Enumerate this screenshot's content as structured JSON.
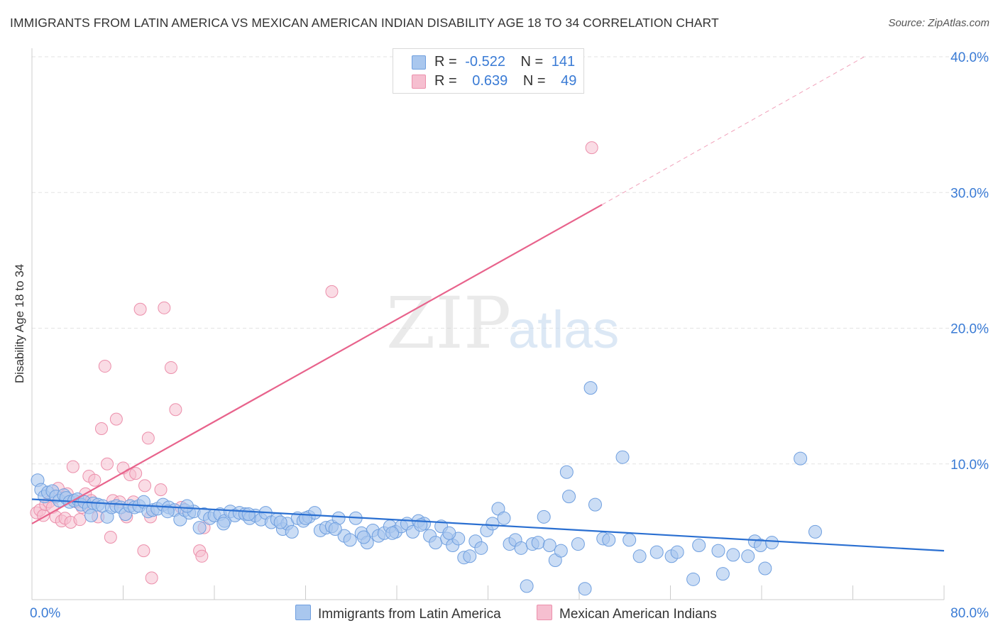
{
  "header": {
    "title": "IMMIGRANTS FROM LATIN AMERICA VS MEXICAN AMERICAN INDIAN DISABILITY AGE 18 TO 34 CORRELATION CHART",
    "source": "Source: ZipAtlas.com"
  },
  "watermark": {
    "zip": "ZIP",
    "atlas": "atlas"
  },
  "legend": {
    "rows": [
      {
        "r_label": "R =",
        "r_value": "-0.522",
        "n_label": "N =",
        "n_value": "141"
      },
      {
        "r_label": "R =",
        "r_value": "0.639",
        "n_label": "N =",
        "n_value": "49"
      }
    ]
  },
  "bottom_legend": {
    "series1": "Immigrants from Latin America",
    "series2": "Mexican American Indians"
  },
  "colors": {
    "blue_fill": "#a9c7ee",
    "blue_stroke": "#6f9fdf",
    "blue_line": "#2a6fd1",
    "pink_fill": "#f6bfd0",
    "pink_stroke": "#ec8fab",
    "pink_line": "#e8638c",
    "tick_label": "#3a7bd5",
    "grid": "#e3e3e3"
  },
  "chart_data": {
    "type": "scatter",
    "title": "IMMIGRANTS FROM LATIN AMERICA VS MEXICAN AMERICAN INDIAN DISABILITY AGE 18 TO 34 CORRELATION CHART",
    "xlabel": "",
    "ylabel": "Disability Age 18 to 34",
    "xlim": [
      0,
      80
    ],
    "ylim": [
      0,
      40
    ],
    "x_tick_labels": [
      "0.0%",
      "80.0%"
    ],
    "y_ticks": [
      10,
      20,
      30,
      40
    ],
    "y_tick_labels": [
      "10.0%",
      "20.0%",
      "30.0%",
      "40.0%"
    ],
    "grid": true,
    "legend_position": "top-center",
    "series": [
      {
        "name": "Immigrants from Latin America",
        "color": "#a9c7ee",
        "trend": {
          "x0": 0,
          "y0": 7.4,
          "x1": 80,
          "y1": 3.6
        },
        "points": [
          [
            0.5,
            8.8
          ],
          [
            0.8,
            8.1
          ],
          [
            1.1,
            7.6
          ],
          [
            1.4,
            7.9
          ],
          [
            1.8,
            8.0
          ],
          [
            2.1,
            7.6
          ],
          [
            2.4,
            7.3
          ],
          [
            2.8,
            7.7
          ],
          [
            3.0,
            7.5
          ],
          [
            3.3,
            7.2
          ],
          [
            3.7,
            7.3
          ],
          [
            4.0,
            7.4
          ],
          [
            4.3,
            7.0
          ],
          [
            4.6,
            7.2
          ],
          [
            5.0,
            6.8
          ],
          [
            5.4,
            7.1
          ],
          [
            5.8,
            7.0
          ],
          [
            6.2,
            6.9
          ],
          [
            6.6,
            6.1
          ],
          [
            7.0,
            6.8
          ],
          [
            7.4,
            6.9
          ],
          [
            7.8,
            6.8
          ],
          [
            8.2,
            6.3
          ],
          [
            8.6,
            6.9
          ],
          [
            9.0,
            6.8
          ],
          [
            9.4,
            6.9
          ],
          [
            9.8,
            7.2
          ],
          [
            10.2,
            6.5
          ],
          [
            10.6,
            6.6
          ],
          [
            11.0,
            6.7
          ],
          [
            11.5,
            7.0
          ],
          [
            12.0,
            6.8
          ],
          [
            12.5,
            6.6
          ],
          [
            13.0,
            5.9
          ],
          [
            13.4,
            6.6
          ],
          [
            13.8,
            6.4
          ],
          [
            14.2,
            6.5
          ],
          [
            14.7,
            5.3
          ],
          [
            15.1,
            6.3
          ],
          [
            15.6,
            6.0
          ],
          [
            16.0,
            6.2
          ],
          [
            16.5,
            6.3
          ],
          [
            16.9,
            5.8
          ],
          [
            17.4,
            6.5
          ],
          [
            17.8,
            6.2
          ],
          [
            18.2,
            6.4
          ],
          [
            18.7,
            6.3
          ],
          [
            19.1,
            6.0
          ],
          [
            19.6,
            6.2
          ],
          [
            20.1,
            5.9
          ],
          [
            20.5,
            6.4
          ],
          [
            21.0,
            5.7
          ],
          [
            21.5,
            5.9
          ],
          [
            22.0,
            5.2
          ],
          [
            22.4,
            5.6
          ],
          [
            22.8,
            5.0
          ],
          [
            23.3,
            6.0
          ],
          [
            23.8,
            5.8
          ],
          [
            24.3,
            6.1
          ],
          [
            24.8,
            6.4
          ],
          [
            25.3,
            5.1
          ],
          [
            25.8,
            5.3
          ],
          [
            26.3,
            5.4
          ],
          [
            26.9,
            6.0
          ],
          [
            27.4,
            4.7
          ],
          [
            27.9,
            4.4
          ],
          [
            28.4,
            6.0
          ],
          [
            28.9,
            4.9
          ],
          [
            29.4,
            4.2
          ],
          [
            29.9,
            5.1
          ],
          [
            30.4,
            4.7
          ],
          [
            30.9,
            4.9
          ],
          [
            31.4,
            5.4
          ],
          [
            31.9,
            5.0
          ],
          [
            32.4,
            5.4
          ],
          [
            32.9,
            5.6
          ],
          [
            33.4,
            5.0
          ],
          [
            33.9,
            5.8
          ],
          [
            34.4,
            5.6
          ],
          [
            34.9,
            4.7
          ],
          [
            35.4,
            4.2
          ],
          [
            35.9,
            5.4
          ],
          [
            36.4,
            4.5
          ],
          [
            36.9,
            4.0
          ],
          [
            37.4,
            4.5
          ],
          [
            37.9,
            3.1
          ],
          [
            38.4,
            3.2
          ],
          [
            38.9,
            4.3
          ],
          [
            39.4,
            3.8
          ],
          [
            39.9,
            5.1
          ],
          [
            40.4,
            5.6
          ],
          [
            40.9,
            6.7
          ],
          [
            41.4,
            6.0
          ],
          [
            41.9,
            4.1
          ],
          [
            42.4,
            4.4
          ],
          [
            42.9,
            3.8
          ],
          [
            43.4,
            1.0
          ],
          [
            43.9,
            4.1
          ],
          [
            44.4,
            4.2
          ],
          [
            44.9,
            6.1
          ],
          [
            45.4,
            4.0
          ],
          [
            45.9,
            2.9
          ],
          [
            46.4,
            3.6
          ],
          [
            46.9,
            9.4
          ],
          [
            47.1,
            7.6
          ],
          [
            47.9,
            4.1
          ],
          [
            48.5,
            0.8
          ],
          [
            49.0,
            15.6
          ],
          [
            49.4,
            7.0
          ],
          [
            50.1,
            4.5
          ],
          [
            50.6,
            4.4
          ],
          [
            51.8,
            10.5
          ],
          [
            52.4,
            4.4
          ],
          [
            53.3,
            3.2
          ],
          [
            54.8,
            3.5
          ],
          [
            56.1,
            3.2
          ],
          [
            56.6,
            3.5
          ],
          [
            58.0,
            1.5
          ],
          [
            58.5,
            4.0
          ],
          [
            60.2,
            3.6
          ],
          [
            60.6,
            1.9
          ],
          [
            61.5,
            3.3
          ],
          [
            62.8,
            3.2
          ],
          [
            63.4,
            4.3
          ],
          [
            63.9,
            4.0
          ],
          [
            64.3,
            2.3
          ],
          [
            64.9,
            4.2
          ],
          [
            67.4,
            10.4
          ],
          [
            68.7,
            5.0
          ],
          [
            5.2,
            6.2
          ],
          [
            11.9,
            6.5
          ],
          [
            13.6,
            6.9
          ],
          [
            16.8,
            5.6
          ],
          [
            19.0,
            6.3
          ],
          [
            21.8,
            5.7
          ],
          [
            24.0,
            6.0
          ],
          [
            26.6,
            5.2
          ],
          [
            29.1,
            4.6
          ],
          [
            31.6,
            4.9
          ],
          [
            34.1,
            5.5
          ],
          [
            36.6,
            4.9
          ]
        ]
      },
      {
        "name": "Mexican American Indians",
        "color": "#f6bfd0",
        "trend": {
          "x0": 0,
          "y0": 5.6,
          "x1": 50,
          "y1": 29.1,
          "dashed_to_x": 73,
          "dashed_to_y": 40
        },
        "points": [
          [
            0.4,
            6.4
          ],
          [
            0.7,
            6.6
          ],
          [
            1.0,
            6.2
          ],
          [
            1.2,
            7.0
          ],
          [
            1.5,
            7.2
          ],
          [
            1.8,
            6.8
          ],
          [
            2.1,
            6.1
          ],
          [
            2.3,
            8.2
          ],
          [
            2.6,
            5.8
          ],
          [
            2.9,
            6.0
          ],
          [
            3.1,
            7.8
          ],
          [
            3.4,
            5.7
          ],
          [
            3.6,
            9.8
          ],
          [
            3.9,
            7.2
          ],
          [
            4.2,
            5.9
          ],
          [
            4.4,
            6.8
          ],
          [
            4.7,
            7.8
          ],
          [
            5.0,
            9.1
          ],
          [
            5.2,
            7.3
          ],
          [
            5.5,
            8.8
          ],
          [
            5.8,
            6.1
          ],
          [
            6.1,
            12.6
          ],
          [
            6.4,
            17.2
          ],
          [
            6.6,
            10.0
          ],
          [
            6.9,
            4.6
          ],
          [
            7.1,
            7.3
          ],
          [
            7.4,
            13.3
          ],
          [
            7.7,
            7.2
          ],
          [
            8.0,
            9.7
          ],
          [
            8.3,
            6.1
          ],
          [
            8.6,
            9.2
          ],
          [
            8.9,
            7.2
          ],
          [
            9.1,
            9.3
          ],
          [
            9.5,
            21.4
          ],
          [
            9.8,
            3.6
          ],
          [
            9.9,
            8.4
          ],
          [
            10.2,
            11.9
          ],
          [
            10.4,
            6.1
          ],
          [
            10.5,
            1.6
          ],
          [
            11.3,
            8.1
          ],
          [
            11.6,
            21.5
          ],
          [
            12.2,
            17.1
          ],
          [
            12.6,
            14.0
          ],
          [
            13.1,
            6.8
          ],
          [
            14.7,
            3.6
          ],
          [
            14.9,
            3.2
          ],
          [
            15.1,
            5.3
          ],
          [
            26.3,
            22.7
          ],
          [
            49.1,
            33.3
          ]
        ]
      }
    ]
  }
}
